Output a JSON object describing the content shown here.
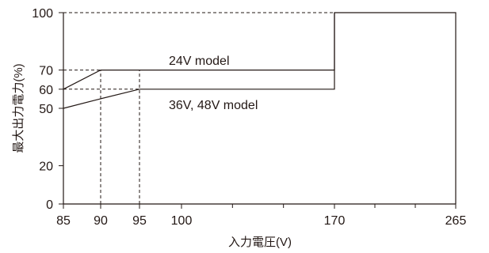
{
  "chart_data": {
    "type": "line",
    "xlabel": "入力電圧(V)",
    "ylabel": "最大出力電力(%)",
    "xlim": [
      85,
      265
    ],
    "ylim": [
      0,
      100
    ],
    "x_ticks": [
      85,
      90,
      95,
      100,
      170,
      265
    ],
    "y_ticks": [
      0,
      20,
      50,
      60,
      70,
      100
    ],
    "grid": false,
    "series": [
      {
        "name": "24V model",
        "points": [
          [
            85,
            60
          ],
          [
            90,
            70
          ],
          [
            95,
            70
          ],
          [
            170,
            70
          ],
          [
            170,
            100
          ],
          [
            265,
            100
          ],
          [
            265,
            0
          ]
        ]
      },
      {
        "name": "36V, 48V model",
        "points": [
          [
            85,
            50
          ],
          [
            90,
            55
          ],
          [
            95,
            60
          ],
          [
            170,
            60
          ],
          [
            170,
            100
          ]
        ]
      }
    ],
    "reference_lines": [
      {
        "from": [
          85,
          100
        ],
        "to": [
          170,
          100
        ]
      },
      {
        "from": [
          85,
          70
        ],
        "to": [
          90,
          70
        ]
      },
      {
        "from": [
          85,
          60
        ],
        "to": [
          95,
          60
        ]
      },
      {
        "from": [
          90,
          0
        ],
        "to": [
          90,
          70
        ]
      },
      {
        "from": [
          95,
          0
        ],
        "to": [
          95,
          70
        ]
      }
    ]
  }
}
